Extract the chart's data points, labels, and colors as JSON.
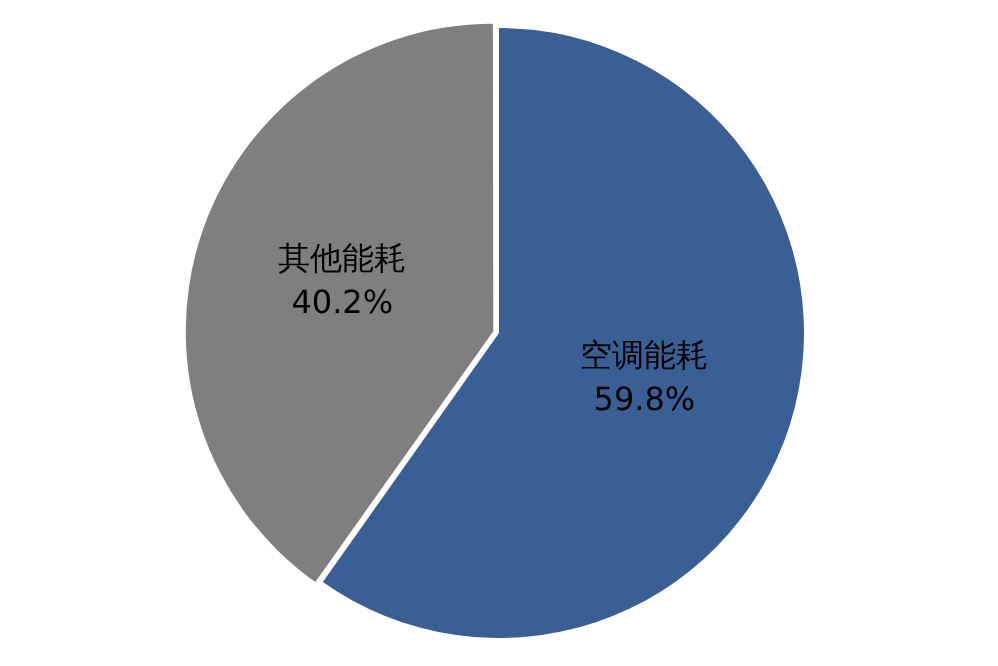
{
  "chart_data": {
    "type": "pie",
    "categories": [
      "空调能耗",
      "其他能耗"
    ],
    "values": [
      59.8,
      40.2
    ],
    "colors": [
      "#3a5f95",
      "#7f7f7f"
    ],
    "value_labels": [
      "59.8%",
      "40.2%"
    ],
    "legend": false
  }
}
